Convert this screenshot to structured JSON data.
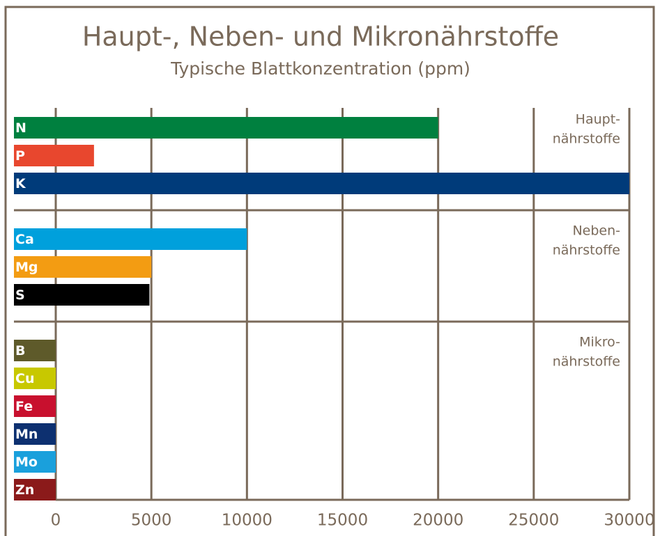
{
  "chart_data": {
    "type": "bar",
    "orientation": "horizontal",
    "title": "Haupt-, Neben- und Mikronährstoffe",
    "subtitle": "Typische Blattkonzentration (ppm)",
    "groups": [
      {
        "label": [
          "Haupt-",
          "nährstoffe"
        ],
        "categories": [
          "N",
          "P",
          "K"
        ],
        "values": [
          20000,
          2000,
          30000
        ],
        "colors": [
          "#00803f",
          "#e8472e",
          "#003b7a"
        ]
      },
      {
        "label": [
          "Neben-",
          "nährstoffe"
        ],
        "categories": [
          "Ca",
          "Mg",
          "S"
        ],
        "values": [
          10000,
          5000,
          4900
        ],
        "colors": [
          "#00a0dc",
          "#f39c12",
          "#000000"
        ]
      },
      {
        "label": [
          "Mikro-",
          "nährstoffe"
        ],
        "categories": [
          "B",
          "Cu",
          "Fe",
          "Mn",
          "Mo",
          "Zn"
        ],
        "values": [
          0,
          0,
          0,
          0,
          0,
          0
        ],
        "colors": [
          "#5e5a2a",
          "#c8c800",
          "#c8102e",
          "#0d3070",
          "#1aa0dc",
          "#8b1a1a"
        ]
      }
    ],
    "xlim": [
      0,
      30000
    ],
    "xticks": [
      0,
      5000,
      10000,
      15000,
      20000,
      25000,
      30000
    ],
    "grid": true
  }
}
